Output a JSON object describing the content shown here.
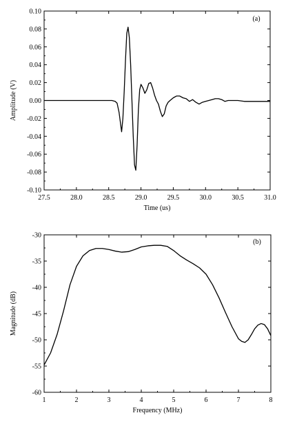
{
  "chart_data": [
    {
      "type": "line",
      "panel_label": "(a)",
      "xlabel": "Time (us)",
      "ylabel": "Amplitude (V)",
      "xlim": [
        27.5,
        31.0
      ],
      "ylim": [
        -0.1,
        0.1
      ],
      "x_ticks": [
        27.5,
        28.0,
        28.5,
        29.0,
        29.5,
        30.0,
        30.5,
        31.0
      ],
      "x_tick_labels": [
        "27.5",
        "28.0",
        "28.5",
        "29.0",
        "29.5",
        "30.0",
        "30.5",
        "31.0"
      ],
      "y_ticks": [
        0.1,
        0.08,
        0.06,
        0.04,
        0.02,
        0.0,
        -0.02,
        -0.04,
        -0.06,
        -0.08,
        -0.1
      ],
      "y_tick_labels": [
        "0.10",
        "0.08",
        "0.06",
        "0.04",
        "0.02",
        "0.00",
        "-0.02",
        "-0.04",
        "-0.06",
        "-0.08",
        "-0.10"
      ],
      "grid": false,
      "line_color": "#000000",
      "x": [
        27.5,
        28.0,
        28.4,
        28.55,
        28.6,
        28.63,
        28.66,
        28.7,
        28.72,
        28.74,
        28.76,
        28.78,
        28.8,
        28.82,
        28.84,
        28.86,
        28.88,
        28.9,
        28.92,
        28.94,
        28.96,
        28.98,
        29.0,
        29.03,
        29.06,
        29.09,
        29.12,
        29.15,
        29.18,
        29.21,
        29.24,
        29.27,
        29.3,
        29.33,
        29.36,
        29.39,
        29.42,
        29.45,
        29.5,
        29.55,
        29.6,
        29.65,
        29.7,
        29.75,
        29.8,
        29.85,
        29.9,
        29.95,
        30.0,
        30.05,
        30.1,
        30.15,
        30.2,
        30.25,
        30.3,
        30.35,
        30.4,
        30.5,
        30.6,
        30.8,
        31.0
      ],
      "y": [
        0.0,
        0.0,
        0.0,
        0.0,
        -0.001,
        -0.003,
        -0.013,
        -0.035,
        -0.02,
        0.01,
        0.045,
        0.075,
        0.082,
        0.07,
        0.04,
        0.0,
        -0.04,
        -0.072,
        -0.078,
        -0.05,
        -0.01,
        0.012,
        0.018,
        0.014,
        0.008,
        0.012,
        0.019,
        0.02,
        0.014,
        0.006,
        0.0,
        -0.004,
        -0.012,
        -0.018,
        -0.015,
        -0.006,
        -0.002,
        0.0,
        0.003,
        0.005,
        0.005,
        0.003,
        0.002,
        -0.001,
        0.001,
        -0.002,
        -0.004,
        -0.002,
        -0.001,
        0.0,
        0.001,
        0.002,
        0.002,
        0.001,
        -0.001,
        0.0,
        0.0,
        0.0,
        -0.001,
        -0.001,
        -0.001
      ]
    },
    {
      "type": "line",
      "panel_label": "(b)",
      "xlabel": "Frequency (MHz)",
      "ylabel": "Magnitude (dB)",
      "xlim": [
        1,
        8
      ],
      "ylim": [
        -60,
        -30
      ],
      "x_ticks": [
        1,
        2,
        3,
        4,
        5,
        6,
        7,
        8
      ],
      "x_tick_labels": [
        "1",
        "2",
        "3",
        "4",
        "5",
        "6",
        "7",
        "8"
      ],
      "y_ticks": [
        -30,
        -35,
        -40,
        -45,
        -50,
        -55,
        -60
      ],
      "y_tick_labels": [
        "-30",
        "-35",
        "-40",
        "-45",
        "-50",
        "-55",
        "-60"
      ],
      "grid": false,
      "line_color": "#000000",
      "x": [
        1.0,
        1.2,
        1.4,
        1.6,
        1.8,
        2.0,
        2.2,
        2.4,
        2.6,
        2.8,
        3.0,
        3.2,
        3.4,
        3.6,
        3.8,
        4.0,
        4.2,
        4.4,
        4.6,
        4.8,
        5.0,
        5.2,
        5.4,
        5.6,
        5.8,
        6.0,
        6.2,
        6.4,
        6.6,
        6.8,
        7.0,
        7.1,
        7.2,
        7.3,
        7.4,
        7.5,
        7.6,
        7.7,
        7.8,
        7.9,
        8.0
      ],
      "y": [
        -54.8,
        -52.5,
        -49.0,
        -44.5,
        -39.5,
        -36.0,
        -34.0,
        -33.0,
        -32.6,
        -32.6,
        -32.8,
        -33.1,
        -33.3,
        -33.2,
        -32.8,
        -32.3,
        -32.1,
        -32.0,
        -32.0,
        -32.2,
        -33.0,
        -34.0,
        -34.8,
        -35.5,
        -36.3,
        -37.5,
        -39.5,
        -42.0,
        -44.8,
        -47.5,
        -49.8,
        -50.3,
        -50.5,
        -50.0,
        -49.0,
        -47.9,
        -47.2,
        -46.9,
        -47.1,
        -47.9,
        -49.2
      ]
    }
  ]
}
